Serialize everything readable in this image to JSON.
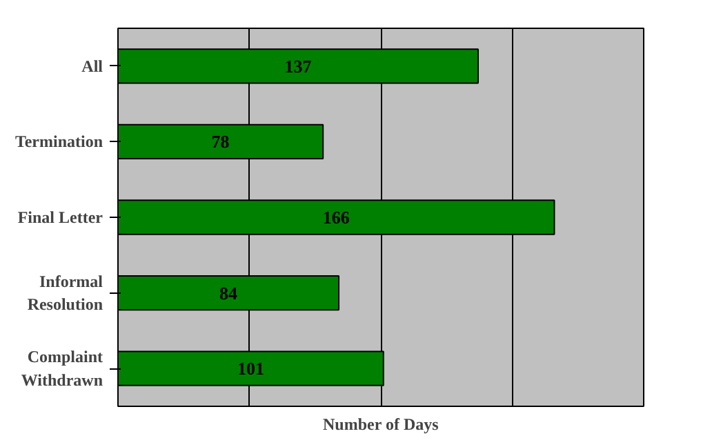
{
  "chart_data": {
    "type": "bar",
    "orientation": "horizontal",
    "xlabel": "Number of Days",
    "categories": [
      "All",
      "Termination",
      "Final Letter",
      "Informal\nResolution",
      "Complaint\nWithdrawn"
    ],
    "values": [
      137,
      78,
      166,
      84,
      101
    ],
    "color": "#008000",
    "data_labels": true,
    "xlim": [
      0,
      200
    ],
    "xticks": [
      {
        "value": 0,
        "label": null
      },
      {
        "value": 50,
        "label": null
      },
      {
        "value": 100,
        "label": null
      },
      {
        "value": 150,
        "label": null
      },
      {
        "value": 200,
        "label": null
      }
    ],
    "tick_labels": "y",
    "grid": "x"
  }
}
